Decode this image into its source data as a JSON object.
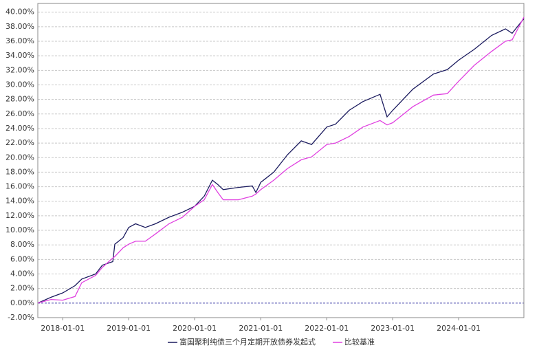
{
  "chart_data": {
    "type": "line",
    "x": [
      "2017-08-16",
      "2017-10-28",
      "2018-01-01",
      "2018-03-10",
      "2018-04-16",
      "2018-07-02",
      "2018-08-08",
      "2018-10-05",
      "2018-10-16",
      "2018-12-01",
      "2019-01-01",
      "2019-02-08",
      "2019-04-03",
      "2019-05-29",
      "2019-08-12",
      "2019-10-26",
      "2020-01-01",
      "2020-02-23",
      "2020-04-08",
      "2020-05-08",
      "2020-06-07",
      "2020-08-30",
      "2020-11-15",
      "2020-12-05",
      "2021-01-01",
      "2021-03-14",
      "2021-05-29",
      "2021-08-13",
      "2021-10-09",
      "2022-01-01",
      "2022-02-19",
      "2022-05-05",
      "2022-07-20",
      "2022-10-23",
      "2022-12-01",
      "2023-01-01",
      "2023-04-22",
      "2023-08-15",
      "2023-10-30",
      "2024-01-01",
      "2024-03-28",
      "2024-07-01",
      "2024-09-16",
      "2024-10-23",
      "2024-12-27"
    ],
    "series": [
      {
        "name": "富国聚利纯债三个月定期开放债券发起式",
        "color": "#1a1a5e",
        "values": [
          0,
          0.8,
          1.4,
          2.4,
          3.3,
          4.0,
          5.2,
          5.7,
          8.1,
          9.0,
          10.4,
          10.9,
          10.4,
          10.9,
          11.8,
          12.5,
          13.3,
          14.7,
          16.9,
          16.3,
          15.6,
          15.9,
          16.1,
          15.2,
          16.6,
          18.0,
          20.4,
          22.3,
          21.8,
          24.2,
          24.6,
          26.5,
          27.7,
          28.7,
          25.6,
          26.5,
          29.4,
          31.5,
          32.1,
          33.4,
          34.9,
          36.8,
          37.7,
          37.1,
          39.1
        ]
      },
      {
        "name": "比较基准",
        "color": "#e040e0",
        "values": [
          0,
          0.5,
          0.4,
          0.9,
          2.8,
          3.8,
          4.9,
          6.2,
          6.4,
          7.6,
          8.1,
          8.5,
          8.5,
          9.5,
          10.9,
          11.8,
          13.3,
          14.2,
          16.3,
          15.2,
          14.2,
          14.2,
          14.7,
          15.0,
          15.6,
          16.9,
          18.5,
          19.7,
          20.1,
          21.8,
          22.0,
          22.9,
          24.2,
          25.1,
          24.5,
          24.8,
          27.0,
          28.6,
          28.8,
          30.5,
          32.7,
          34.6,
          36.0,
          36.2,
          39.3
        ]
      }
    ],
    "xlim": [
      "2017-08-16",
      "2024-12-27"
    ],
    "xticks": [
      "2018-01-01",
      "2019-01-01",
      "2020-01-01",
      "2021-01-01",
      "2022-01-01",
      "2023-01-01",
      "2024-01-01"
    ],
    "ylim": [
      -2.0,
      41.2
    ],
    "yticks": [
      {
        "value": -2,
        "label": "-2.00%"
      },
      {
        "value": 0,
        "label": "0.00%"
      },
      {
        "value": 2,
        "label": "2.00%"
      },
      {
        "value": 4,
        "label": "4.00%"
      },
      {
        "value": 6,
        "label": "6.00%"
      },
      {
        "value": 8,
        "label": "8.00%"
      },
      {
        "value": 10,
        "label": "10.00%"
      },
      {
        "value": 12,
        "label": "12.00%"
      },
      {
        "value": 14,
        "label": "14.00%"
      },
      {
        "value": 16,
        "label": "16.00%"
      },
      {
        "value": 18,
        "label": "18.00%"
      },
      {
        "value": 20,
        "label": "20.00%"
      },
      {
        "value": 22,
        "label": "22.00%"
      },
      {
        "value": 24,
        "label": "24.00%"
      },
      {
        "value": 26,
        "label": "26.00%"
      },
      {
        "value": 28,
        "label": "28.00%"
      },
      {
        "value": 30,
        "label": "30.00%"
      },
      {
        "value": 32,
        "label": "32.00%"
      },
      {
        "value": 34,
        "label": "34.00%"
      },
      {
        "value": 36,
        "label": "36.00%"
      },
      {
        "value": 38,
        "label": "38.00%"
      },
      {
        "value": 40,
        "label": "40.00%"
      }
    ],
    "grid": true,
    "legend": "bottom"
  }
}
